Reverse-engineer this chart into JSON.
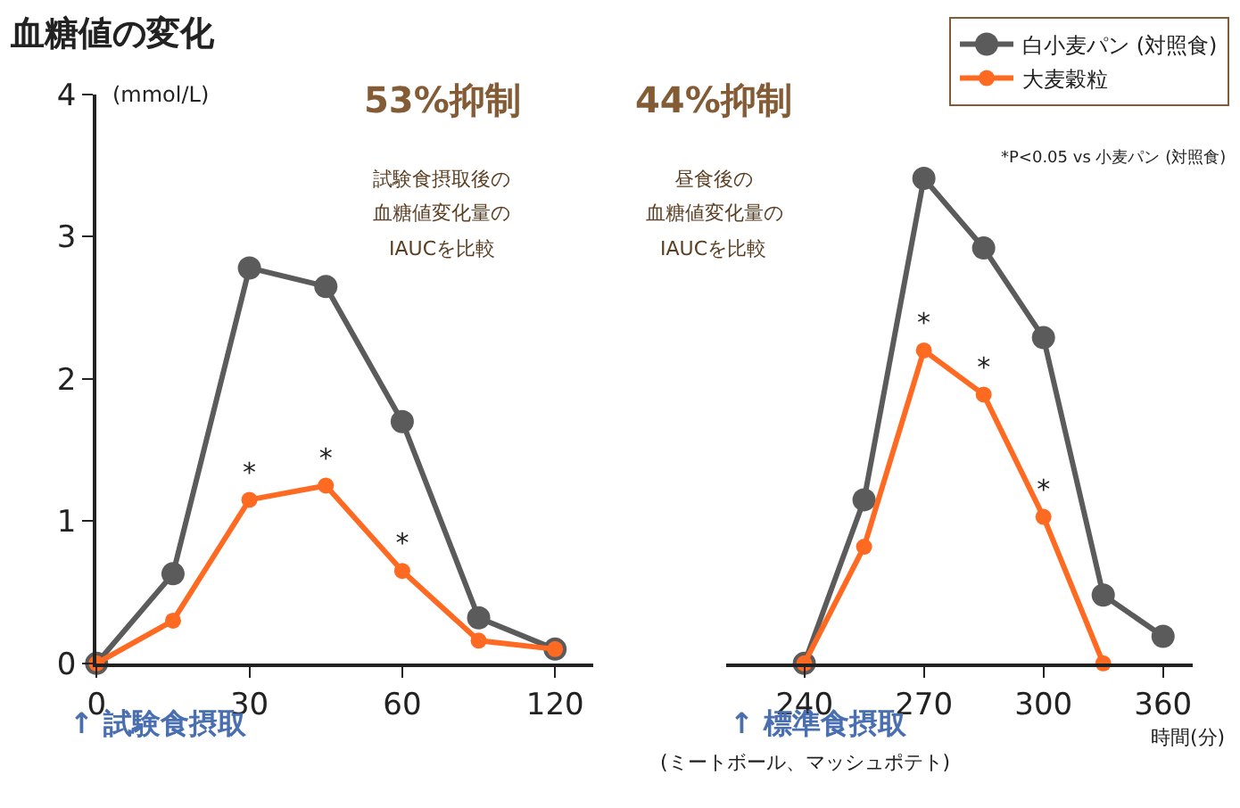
{
  "chart_data": [
    {
      "type": "line",
      "title": "血糖値の変化",
      "ylabel": "(mmol/L)",
      "xlabel": "↑ 試験食摂取",
      "categories": [
        "0",
        null,
        "30",
        null,
        "60",
        null,
        "120"
      ],
      "ylim": [
        0,
        4
      ],
      "yticks": [
        0,
        1,
        2,
        3,
        4
      ],
      "marker": "circle",
      "line_style": "solid",
      "legend": "top right",
      "series": [
        {
          "name": "白小麦パン (対照食)",
          "color": "#5b5b5b",
          "values": [
            0,
            0.63,
            2.78,
            2.65,
            1.7,
            0.32,
            0.1
          ]
        },
        {
          "name": "大麦穀粒",
          "color": "#ff6a22",
          "values": [
            0,
            0.3,
            1.15,
            1.25,
            0.65,
            0.16,
            0.1
          ],
          "value_labels": [
            null,
            null,
            "*",
            "*",
            "*",
            null,
            null
          ]
        }
      ],
      "annotations": [
        "53%抑制",
        "試験食摂取後の",
        "血糖値変化量の",
        "IAUCを比較"
      ]
    },
    {
      "type": "line",
      "xlabel": "時間(分)",
      "categories": [
        "240",
        null,
        "270",
        null,
        "300",
        null,
        "360"
      ],
      "ylim": [
        0,
        4
      ],
      "yticks": [
        0,
        1,
        2,
        3,
        4
      ],
      "tick_labels": "x",
      "marker": "circle",
      "line_style": "solid",
      "series": [
        {
          "color": "#5b5b5b",
          "values": [
            0,
            1.15,
            3.41,
            2.92,
            2.29,
            0.48,
            0.19
          ]
        },
        {
          "color": "#ff6a22",
          "values": [
            0,
            0.82,
            2.2,
            1.89,
            1.03,
            0,
            null
          ],
          "value_labels": [
            null,
            null,
            "*",
            "*",
            "*",
            null,
            null
          ]
        }
      ],
      "annotations": [
        "44%抑制",
        "昼食後の",
        "血糖値変化量の",
        "IAUCを比較",
        "↑ 標準食摂取",
        "(ミートボール、マッシュポテト)",
        "*P<0.05 vs 小麦パン (対照食)"
      ]
    }
  ]
}
